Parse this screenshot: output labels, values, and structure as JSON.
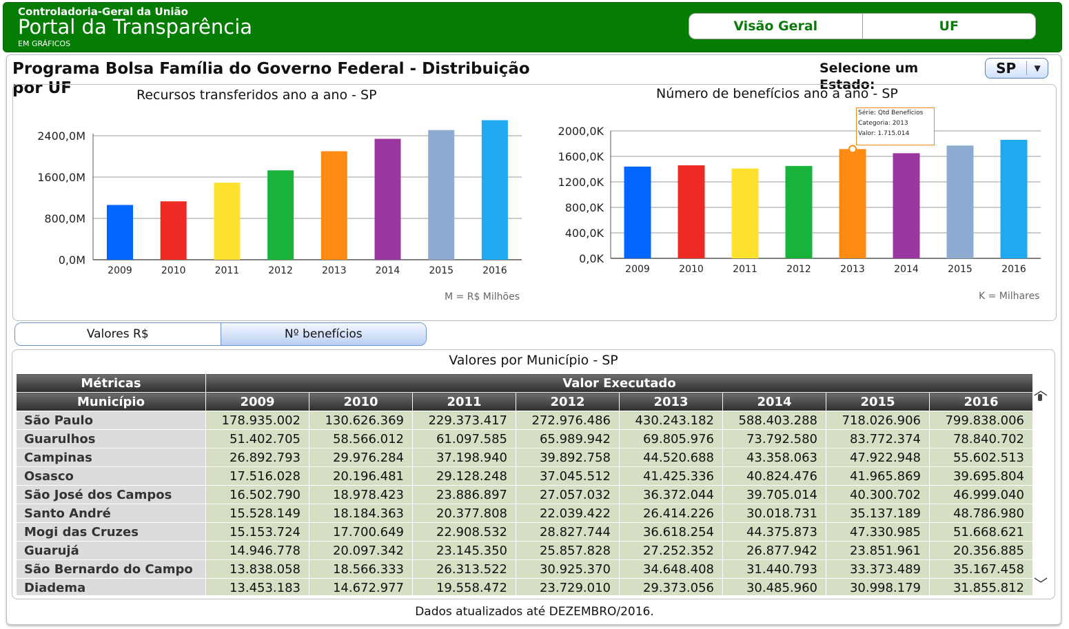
{
  "header": {
    "org": "Controladoria-Geral da União",
    "portal": "Portal da Transparência",
    "subtitle": "EM GRÁFICOS",
    "nav": [
      "Visão Geral",
      "UF"
    ]
  },
  "page": {
    "title": "Programa Bolsa Família do Governo Federal - Distribuição por UF",
    "select_label": "Selecione um Estado:",
    "selected_state": "SP"
  },
  "colors": {
    "header_green": "#057d05",
    "bars": [
      "#0066ff",
      "#ee2a24",
      "#ffe22d",
      "#17b33b",
      "#ff8a14",
      "#9b38a0",
      "#8eabd2",
      "#1faaf0"
    ]
  },
  "chart_data": [
    {
      "type": "bar",
      "title": "Recursos transferidos ano a ano - SP",
      "categories": [
        "2009",
        "2010",
        "2011",
        "2012",
        "2013",
        "2014",
        "2015",
        "2016"
      ],
      "values": [
        1060,
        1130,
        1490,
        1730,
        2100,
        2340,
        2510,
        2700
      ],
      "yticks": [
        "0,0M",
        "800,0M",
        "1600,0M",
        "2400,0M"
      ],
      "ylim": [
        0,
        2800
      ],
      "note": "M = R$ Milhões"
    },
    {
      "type": "bar",
      "title": "Número de benefícios ano a ano - SP",
      "categories": [
        "2009",
        "2010",
        "2011",
        "2012",
        "2013",
        "2014",
        "2015",
        "2016"
      ],
      "values": [
        1440,
        1460,
        1410,
        1450,
        1715,
        1650,
        1770,
        1860
      ],
      "yticks": [
        "0,0K",
        "400,0K",
        "800,0K",
        "1200,0K",
        "1600,0K",
        "2000,0K"
      ],
      "ylim": [
        0,
        2000
      ],
      "note": "K = Milhares",
      "tooltip": {
        "serie": "Série: Qtd Benefícios",
        "categoria": "Categoria: 2013",
        "valor": "Valor: 1.715.014"
      }
    }
  ],
  "tabs": [
    "Valores R$",
    "Nº benefícios"
  ],
  "table": {
    "title": "Valores por Município  -  SP",
    "metric_header": "Métricas",
    "group_header": "Valor Executado",
    "mun_header": "Município",
    "years": [
      "2009",
      "2010",
      "2011",
      "2012",
      "2013",
      "2014",
      "2015",
      "2016"
    ],
    "rows": [
      {
        "name": "São Paulo",
        "values": [
          "178.935.002",
          "130.626.369",
          "229.373.417",
          "272.976.486",
          "430.243.182",
          "588.403.288",
          "718.026.906",
          "799.838.006"
        ]
      },
      {
        "name": "Guarulhos",
        "values": [
          "51.402.705",
          "58.566.012",
          "61.097.585",
          "65.989.942",
          "69.805.976",
          "73.792.580",
          "83.772.374",
          "78.840.702"
        ]
      },
      {
        "name": "Campinas",
        "values": [
          "26.892.793",
          "29.976.284",
          "37.198.940",
          "39.892.758",
          "44.520.688",
          "43.358.063",
          "47.922.948",
          "55.602.513"
        ]
      },
      {
        "name": "Osasco",
        "values": [
          "17.516.028",
          "20.196.481",
          "29.128.248",
          "37.045.512",
          "41.425.336",
          "40.824.476",
          "41.965.869",
          "39.695.804"
        ]
      },
      {
        "name": "São José dos Campos",
        "values": [
          "16.502.790",
          "18.978.423",
          "23.886.897",
          "27.057.032",
          "36.372.044",
          "39.705.014",
          "40.300.702",
          "46.999.040"
        ]
      },
      {
        "name": "Santo André",
        "values": [
          "15.528.149",
          "18.184.363",
          "20.377.808",
          "22.039.422",
          "26.414.226",
          "30.018.731",
          "35.137.189",
          "48.786.980"
        ]
      },
      {
        "name": "Mogi das Cruzes",
        "values": [
          "15.153.724",
          "17.700.649",
          "22.908.532",
          "28.827.744",
          "36.618.254",
          "44.375.873",
          "47.330.985",
          "51.668.621"
        ]
      },
      {
        "name": "Guarujá",
        "values": [
          "14.946.778",
          "20.097.342",
          "23.145.350",
          "25.857.828",
          "27.252.352",
          "26.877.942",
          "23.851.961",
          "20.356.885"
        ]
      },
      {
        "name": "São Bernardo do Campo",
        "values": [
          "13.838.058",
          "18.566.333",
          "26.313.522",
          "30.925.370",
          "34.648.408",
          "31.440.793",
          "33.373.489",
          "35.167.458"
        ]
      },
      {
        "name": "Diadema",
        "values": [
          "13.453.183",
          "14.672.977",
          "19.558.472",
          "23.729.010",
          "29.373.056",
          "30.485.960",
          "30.998.179",
          "31.855.812"
        ]
      }
    ]
  },
  "footer": "Dados atualizados até DEZEMBRO/2016."
}
